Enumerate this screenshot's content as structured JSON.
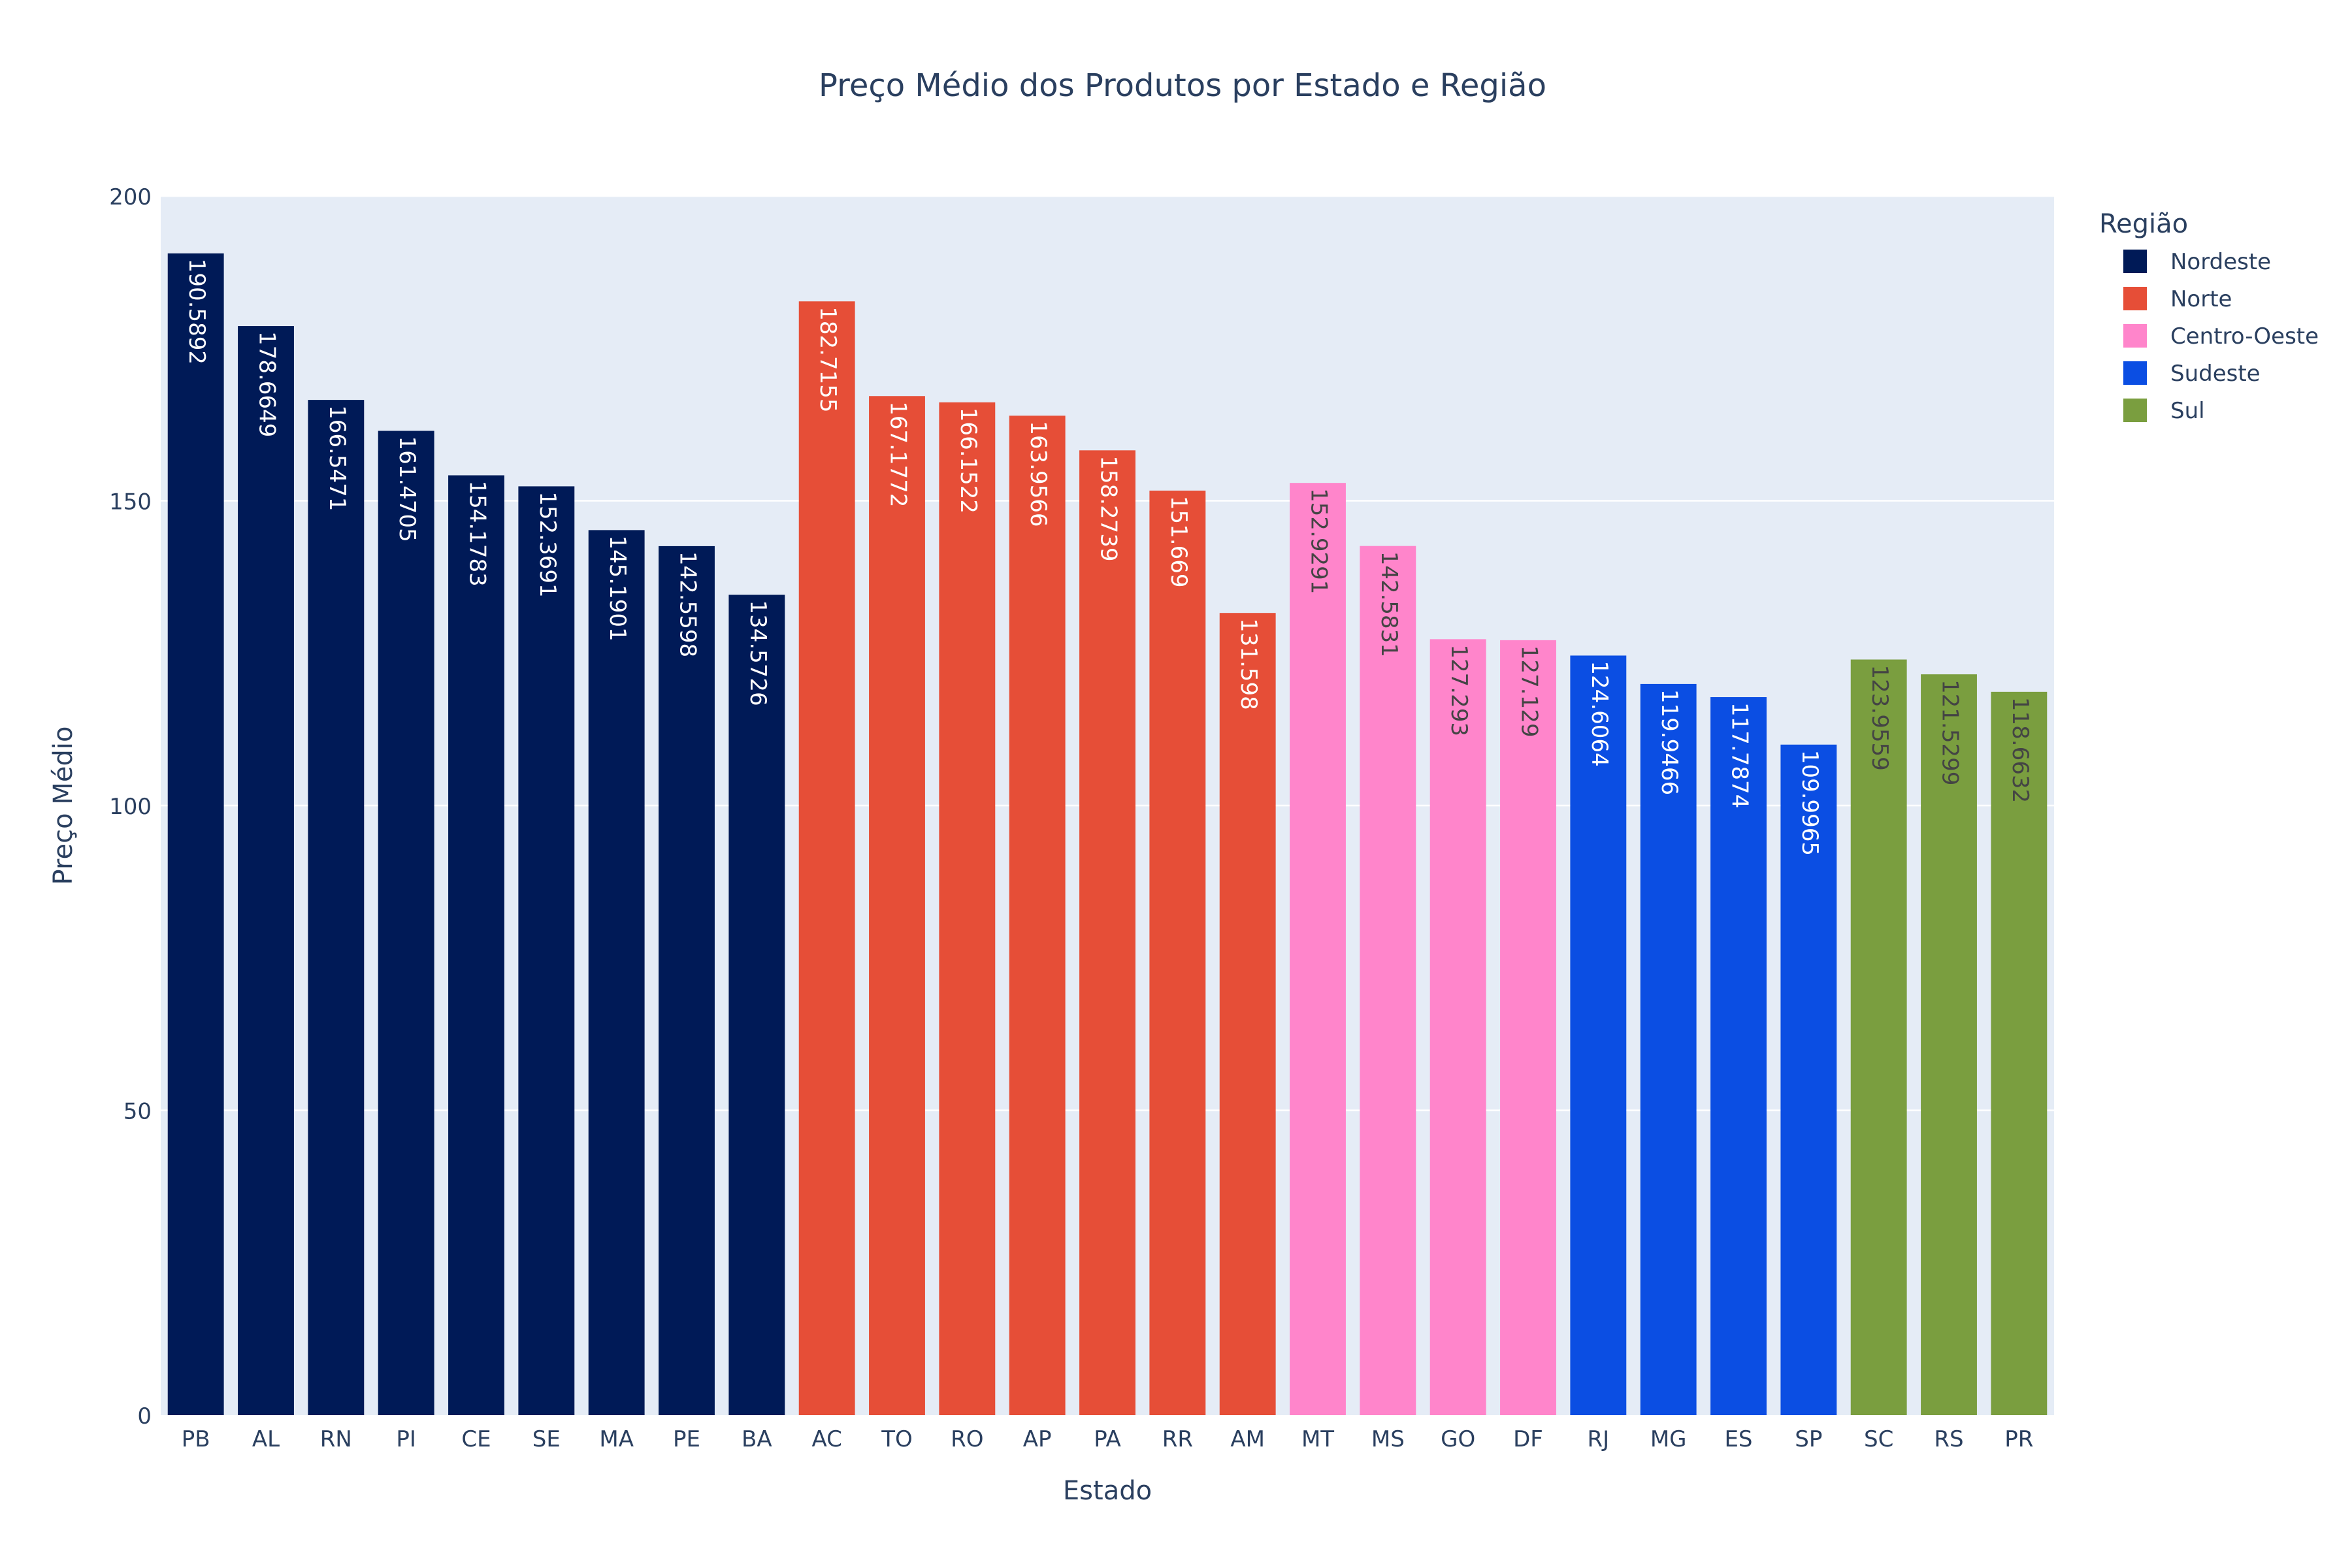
{
  "chart_data": {
    "type": "bar",
    "title": "Preço Médio dos Produtos por Estado e Região",
    "xlabel": "Estado",
    "ylabel": "Preço Médio",
    "ylim": [
      0,
      200
    ],
    "yticks": [
      0,
      50,
      100,
      150,
      200
    ],
    "grid": true,
    "legend": {
      "title": "Região",
      "placement": "right"
    },
    "categories": [
      "PB",
      "AL",
      "RN",
      "PI",
      "CE",
      "SE",
      "MA",
      "PE",
      "BA",
      "AC",
      "TO",
      "RO",
      "AP",
      "PA",
      "RR",
      "AM",
      "MT",
      "MS",
      "GO",
      "DF",
      "RJ",
      "MG",
      "ES",
      "SP",
      "SC",
      "RS",
      "PR"
    ],
    "series": [
      {
        "name": "Nordeste",
        "color": "#001a57",
        "label_color": "#ffffff",
        "points": [
          {
            "x": "PB",
            "y": 190.5892,
            "label": "190.5892"
          },
          {
            "x": "AL",
            "y": 178.6649,
            "label": "178.6649"
          },
          {
            "x": "RN",
            "y": 166.5471,
            "label": "166.5471"
          },
          {
            "x": "PI",
            "y": 161.4705,
            "label": "161.4705"
          },
          {
            "x": "CE",
            "y": 154.1783,
            "label": "154.1783"
          },
          {
            "x": "SE",
            "y": 152.3691,
            "label": "152.3691"
          },
          {
            "x": "MA",
            "y": 145.1901,
            "label": "145.1901"
          },
          {
            "x": "PE",
            "y": 142.5598,
            "label": "142.5598"
          },
          {
            "x": "BA",
            "y": 134.5726,
            "label": "134.5726"
          }
        ]
      },
      {
        "name": "Norte",
        "color": "#e64e37",
        "label_color": "#ffffff",
        "points": [
          {
            "x": "AC",
            "y": 182.7155,
            "label": "182.7155"
          },
          {
            "x": "TO",
            "y": 167.1772,
            "label": "167.1772"
          },
          {
            "x": "RO",
            "y": 166.1522,
            "label": "166.1522"
          },
          {
            "x": "AP",
            "y": 163.9566,
            "label": "163.9566"
          },
          {
            "x": "PA",
            "y": 158.2739,
            "label": "158.2739"
          },
          {
            "x": "RR",
            "y": 151.669,
            "label": "151.669"
          },
          {
            "x": "AM",
            "y": 131.598,
            "label": "131.598"
          }
        ]
      },
      {
        "name": "Centro-Oeste",
        "color": "#ff85cb",
        "label_color": "#444444",
        "points": [
          {
            "x": "MT",
            "y": 152.9291,
            "label": "152.9291"
          },
          {
            "x": "MS",
            "y": 142.5831,
            "label": "142.5831"
          },
          {
            "x": "GO",
            "y": 127.293,
            "label": "127.293"
          },
          {
            "x": "DF",
            "y": 127.129,
            "label": "127.129"
          }
        ]
      },
      {
        "name": "Sudeste",
        "color": "#0b4ee3",
        "label_color": "#ffffff",
        "points": [
          {
            "x": "RJ",
            "y": 124.6064,
            "label": "124.6064"
          },
          {
            "x": "MG",
            "y": 119.9466,
            "label": "119.9466"
          },
          {
            "x": "ES",
            "y": 117.7874,
            "label": "117.7874"
          },
          {
            "x": "SP",
            "y": 109.9965,
            "label": "109.9965"
          }
        ]
      },
      {
        "name": "Sul",
        "color": "#7a9e3f",
        "label_color": "#444444",
        "points": [
          {
            "x": "SC",
            "y": 123.9559,
            "label": "123.9559"
          },
          {
            "x": "RS",
            "y": 121.5299,
            "label": "121.5299"
          },
          {
            "x": "PR",
            "y": 118.6632,
            "label": "118.6632"
          }
        ]
      }
    ]
  }
}
